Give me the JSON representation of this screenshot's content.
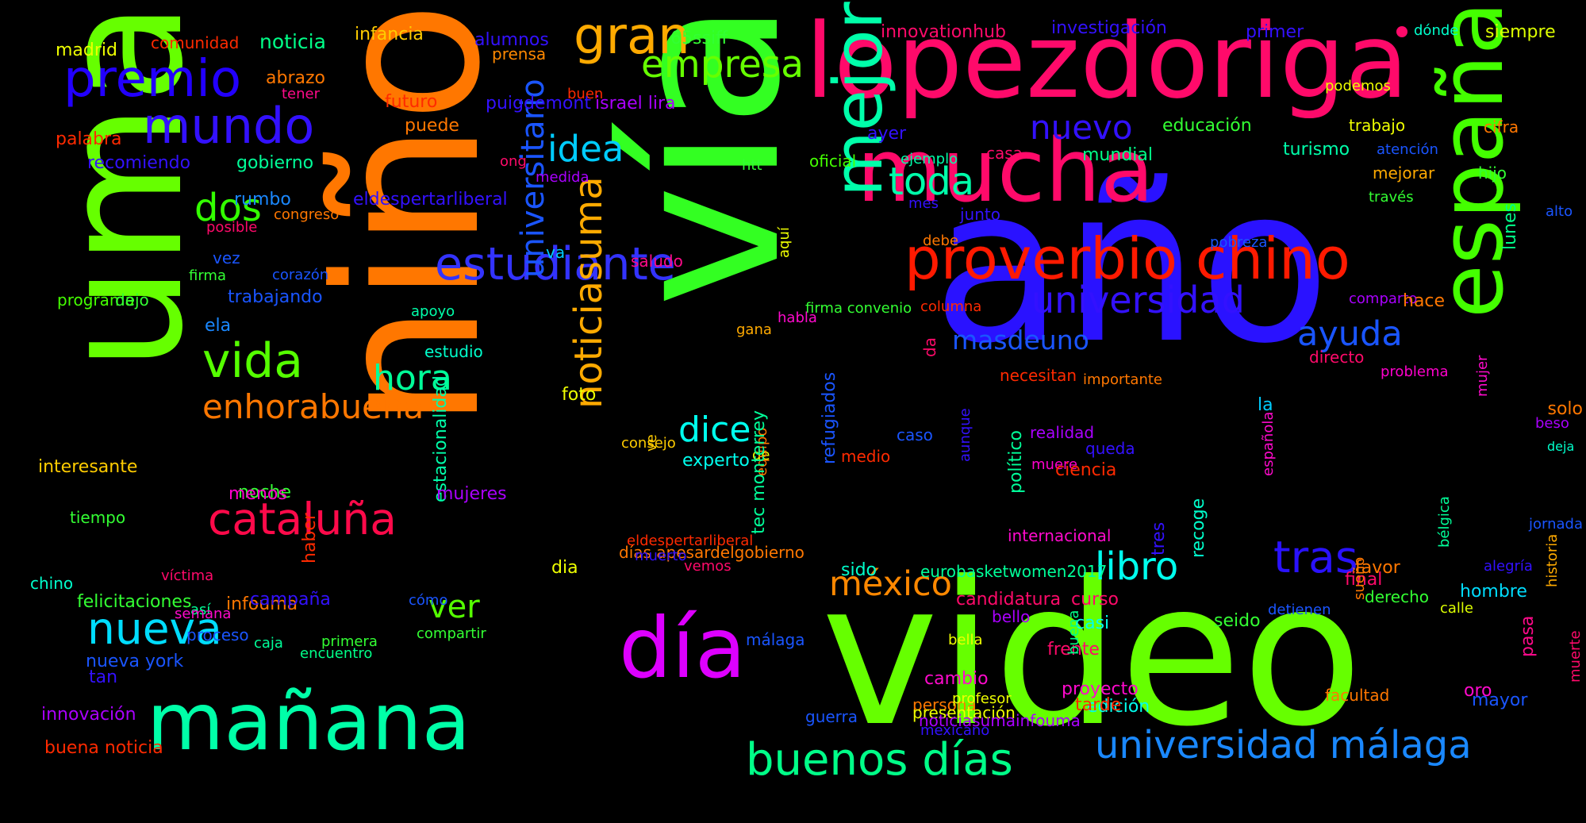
{
  "title": "",
  "words": [
    {
      "text": "video",
      "color": "#66ff00"
    },
    {
      "text": "vía",
      "color": "#33ff22"
    },
    {
      "text": "niño",
      "color": "#ff7700"
    },
    {
      "text": "año",
      "color": "#2a12ff"
    },
    {
      "text": "uma",
      "color": "#66ff00"
    },
    {
      "text": "lopezdoriga",
      "color": "#ff0a6a"
    },
    {
      "text": "mucha",
      "color": "#ff0a6a"
    },
    {
      "text": "españa",
      "color": "#44ff00"
    },
    {
      "text": "mañana",
      "color": "#00ffa8"
    },
    {
      "text": "mejor",
      "color": "#00ffaa"
    },
    {
      "text": "día",
      "color": "#dd00ff"
    },
    {
      "text": "proverbio chino",
      "color": "#ff1a00"
    },
    {
      "text": "buenos días",
      "color": "#00ff88"
    },
    {
      "text": "universidad málaga",
      "color": "#1a88ff"
    },
    {
      "text": "estudiante",
      "color": "#3333ff"
    },
    {
      "text": "premio",
      "color": "#2200ff"
    },
    {
      "text": "mundo",
      "color": "#3311ff"
    },
    {
      "text": "gran",
      "color": "#ffaa00"
    },
    {
      "text": "empresa",
      "color": "#66ff00"
    },
    {
      "text": "cataluña",
      "color": "#ff0a4a"
    },
    {
      "text": "vida",
      "color": "#55ff00"
    },
    {
      "text": "nueva",
      "color": "#00ddff"
    },
    {
      "text": "enhorabuena",
      "color": "#ff7700"
    },
    {
      "text": "universidad",
      "color": "#3311ff"
    },
    {
      "text": "noticiasuma",
      "color": "#ffaa00"
    },
    {
      "text": "universitario",
      "color": "#1a55ff"
    },
    {
      "text": "tras",
      "color": "#2a12ff"
    },
    {
      "text": "libro",
      "color": "#00ffee"
    },
    {
      "text": "toda",
      "color": "#00ffaa"
    },
    {
      "text": "idea",
      "color": "#00ccff"
    },
    {
      "text": "dos",
      "color": "#33ff00"
    },
    {
      "text": "ayuda",
      "color": "#1a55ff"
    },
    {
      "text": "dice",
      "color": "#00ffee"
    },
    {
      "text": "hora",
      "color": "#00ff99"
    },
    {
      "text": "ver",
      "color": "#55ff00"
    },
    {
      "text": "méxico",
      "color": "#ff8800"
    },
    {
      "text": "nuevo",
      "color": "#3311ff"
    },
    {
      "text": "masdeuno",
      "color": "#1a55ff"
    },
    {
      "text": "noticia",
      "color": "#00ff88"
    },
    {
      "text": "madrid",
      "color": "#eeff00"
    },
    {
      "text": "comunidad",
      "color": "#ff2a00"
    },
    {
      "text": "infancia",
      "color": "#ffcc00"
    },
    {
      "text": "alumnos",
      "color": "#3311ff"
    },
    {
      "text": "prensa",
      "color": "#ff8800"
    },
    {
      "text": "65ssiff",
      "color": "#33ff33"
    },
    {
      "text": "innovationhub",
      "color": "#ff0a6a"
    },
    {
      "text": "investigación",
      "color": "#3311ff"
    },
    {
      "text": "primer",
      "color": "#3311ff"
    },
    {
      "text": "dónde",
      "color": "#00ffcc"
    },
    {
      "text": "siempre",
      "color": "#ddff00"
    },
    {
      "text": "abrazo",
      "color": "#ff7700"
    },
    {
      "text": "tener",
      "color": "#ff0a8a"
    },
    {
      "text": "buen",
      "color": "#ff2a00"
    },
    {
      "text": "puigdemont",
      "color": "#3311ff"
    },
    {
      "text": "israel lira",
      "color": "#aa00ff"
    },
    {
      "text": "podemos",
      "color": "#eeff00"
    },
    {
      "text": "futuro",
      "color": "#ff2a00"
    },
    {
      "text": "puede",
      "color": "#ff7700"
    },
    {
      "text": "palabra",
      "color": "#ff2a00"
    },
    {
      "text": "recomiendo",
      "color": "#3311ff"
    },
    {
      "text": "gobierno",
      "color": "#00ff99"
    },
    {
      "text": "ayer",
      "color": "#3311ff"
    },
    {
      "text": "educación",
      "color": "#33ff33"
    },
    {
      "text": "trabajo",
      "color": "#eeff00"
    },
    {
      "text": "cifra",
      "color": "#ff7700"
    },
    {
      "text": "turismo",
      "color": "#00ffaa"
    },
    {
      "text": "atención",
      "color": "#1a55ff"
    },
    {
      "text": "ong",
      "color": "#ff0a6a"
    },
    {
      "text": "medida",
      "color": "#aa00ff"
    },
    {
      "text": "htt",
      "color": "#33ff33"
    },
    {
      "text": "oficial",
      "color": "#44ff00"
    },
    {
      "text": "ejemplo",
      "color": "#00ffaa"
    },
    {
      "text": "casa",
      "color": "#ff0a6a"
    },
    {
      "text": "mundial",
      "color": "#00ff88"
    },
    {
      "text": "mejorar",
      "color": "#ffaa00"
    },
    {
      "text": "hijo",
      "color": "#33ff33"
    },
    {
      "text": "rumbo",
      "color": "#1a88ff"
    },
    {
      "text": "eldespertarliberal",
      "color": "#3311ff"
    },
    {
      "text": "congreso",
      "color": "#ff7700"
    },
    {
      "text": "mes",
      "color": "#3311ff"
    },
    {
      "text": "junto",
      "color": "#3311ff"
    },
    {
      "text": "través",
      "color": "#33ff33"
    },
    {
      "text": "alto",
      "color": "#1a55ff"
    },
    {
      "text": "posible",
      "color": "#ff0a6a"
    },
    {
      "text": "debe",
      "color": "#ff7700"
    },
    {
      "text": "pobreza",
      "color": "#1a55ff"
    },
    {
      "text": "vez",
      "color": "#1a55ff"
    },
    {
      "text": "firma",
      "color": "#33ff33"
    },
    {
      "text": "corazón",
      "color": "#1a55ff"
    },
    {
      "text": "va",
      "color": "#00ccff"
    },
    {
      "text": "saludo",
      "color": "#ff0a8a"
    },
    {
      "text": "lunes",
      "color": "#00ff88"
    },
    {
      "text": "aquí",
      "color": "#eeff00"
    },
    {
      "text": "programa",
      "color": "#44ff00"
    },
    {
      "text": "dejo",
      "color": "#33ff33"
    },
    {
      "text": "trabajando",
      "color": "#1a55ff"
    },
    {
      "text": "apoyo",
      "color": "#00ffaa"
    },
    {
      "text": "firma convenio",
      "color": "#33ff33"
    },
    {
      "text": "columna",
      "color": "#ff2a00"
    },
    {
      "text": "comparto",
      "color": "#aa00ff"
    },
    {
      "text": "hace",
      "color": "#ff7700"
    },
    {
      "text": "ela",
      "color": "#1a88ff"
    },
    {
      "text": "habla",
      "color": "#ff0acc"
    },
    {
      "text": "gana",
      "color": "#ffaa00"
    },
    {
      "text": "da",
      "color": "#ff0a6a"
    },
    {
      "text": "estudio",
      "color": "#00ffcc"
    },
    {
      "text": "directo",
      "color": "#ff0a6a"
    },
    {
      "text": "necesitan",
      "color": "#ff2a00"
    },
    {
      "text": "problema",
      "color": "#ff00cc"
    },
    {
      "text": "mujer",
      "color": "#ff0acc"
    },
    {
      "text": "la",
      "color": "#00ccff"
    },
    {
      "text": "foto",
      "color": "#eeff00"
    },
    {
      "text": "importante",
      "color": "#ff7700"
    },
    {
      "text": "solo",
      "color": "#ff7700"
    },
    {
      "text": "de",
      "color": "#eeff00"
    },
    {
      "text": "realidad",
      "color": "#aa00ff"
    },
    {
      "text": "beso",
      "color": "#aa00ff"
    },
    {
      "text": "muere",
      "color": "#ff00cc"
    },
    {
      "text": "caso",
      "color": "#1a55ff"
    },
    {
      "text": "queda",
      "color": "#3311ff"
    },
    {
      "text": "deja",
      "color": "#00ffcc"
    },
    {
      "text": "consejo",
      "color": "#ffcc00"
    },
    {
      "text": "ve",
      "color": "#ffcc00"
    },
    {
      "text": "medio",
      "color": "#ff2a00"
    },
    {
      "text": "experto",
      "color": "#00ffee"
    },
    {
      "text": "aunque",
      "color": "#3311ff"
    },
    {
      "text": "ciencia",
      "color": "#ff2a00"
    },
    {
      "text": "refugiados",
      "color": "#1a55ff"
    },
    {
      "text": "noche",
      "color": "#33ff33"
    },
    {
      "text": "estacionalidad",
      "color": "#00ffaa"
    },
    {
      "text": "española",
      "color": "#ff0acc"
    },
    {
      "text": "menos",
      "color": "#ff00cc"
    },
    {
      "text": "equipo",
      "color": "#ff7700"
    },
    {
      "text": "mujeres",
      "color": "#aa00ff"
    },
    {
      "text": "interesante",
      "color": "#ffcc00"
    },
    {
      "text": "tec monterrey",
      "color": "#00ff99"
    },
    {
      "text": "días apesardelgobierno",
      "color": "#ff7700"
    },
    {
      "text": "político",
      "color": "#00ff99"
    },
    {
      "text": "internacional",
      "color": "#ff0acc"
    },
    {
      "text": "bélgica",
      "color": "#00ff99"
    },
    {
      "text": "tiempo",
      "color": "#33ff33"
    },
    {
      "text": "eldespertarliberal",
      "color": "#ff2a00"
    },
    {
      "text": "muerto",
      "color": "#3311ff"
    },
    {
      "text": "dia",
      "color": "#eeff00"
    },
    {
      "text": "vemos",
      "color": "#ff0a6a"
    },
    {
      "text": "jornada",
      "color": "#1a55ff"
    },
    {
      "text": "chino",
      "color": "#00ffcc"
    },
    {
      "text": "sido",
      "color": "#00ffcc"
    },
    {
      "text": "tres",
      "color": "#3311ff"
    },
    {
      "text": "recoge",
      "color": "#00ffcc"
    },
    {
      "text": "favor",
      "color": "#ff7700"
    },
    {
      "text": "alegría",
      "color": "#3311ff"
    },
    {
      "text": "eurobasketwomen2017",
      "color": "#00ff99"
    },
    {
      "text": "infouma",
      "color": "#ff7700"
    },
    {
      "text": "haber",
      "color": "#ff2a00"
    },
    {
      "text": "final",
      "color": "#ff0a6a"
    },
    {
      "text": "derecho",
      "color": "#33ff33"
    },
    {
      "text": "sueño",
      "color": "#ff7700"
    },
    {
      "text": "detienen",
      "color": "#1a55ff"
    },
    {
      "text": "hombre",
      "color": "#00ddff"
    },
    {
      "text": "historia",
      "color": "#ffaa00"
    },
    {
      "text": "candidatura",
      "color": "#ff0a6a"
    },
    {
      "text": "felicitaciones",
      "color": "#33ff33"
    },
    {
      "text": "víctima",
      "color": "#ff0a6a"
    },
    {
      "text": "campaña",
      "color": "#3311ff"
    },
    {
      "text": "calle",
      "color": "#ddff00"
    },
    {
      "text": "cómo",
      "color": "#1a55ff"
    },
    {
      "text": "curso",
      "color": "#ff0a6a"
    },
    {
      "text": "bello",
      "color": "#aa00ff"
    },
    {
      "text": "así",
      "color": "#00ff99"
    },
    {
      "text": "casi",
      "color": "#00ffee"
    },
    {
      "text": "semana",
      "color": "#ff0acc"
    },
    {
      "text": "proceso",
      "color": "#1a55ff"
    },
    {
      "text": "primera",
      "color": "#33ff33"
    },
    {
      "text": "encuentro",
      "color": "#00ff88"
    },
    {
      "text": "compartir",
      "color": "#33ff33"
    },
    {
      "text": "caja",
      "color": "#00ff99"
    },
    {
      "text": "málaga",
      "color": "#1a55ff"
    },
    {
      "text": "bella",
      "color": "#eeff00"
    },
    {
      "text": "seido",
      "color": "#33ff33"
    },
    {
      "text": "nueva york",
      "color": "#1a55ff"
    },
    {
      "text": "frente",
      "color": "#ff0a6a"
    },
    {
      "text": "buena",
      "color": "#00ff88"
    },
    {
      "text": "cambio",
      "color": "#ff0acc"
    },
    {
      "text": "pasa",
      "color": "#ff0a8a"
    },
    {
      "text": "tan",
      "color": "#3311ff"
    },
    {
      "text": "proyecto",
      "color": "#ff0acc"
    },
    {
      "text": "edición",
      "color": "#00ffee"
    },
    {
      "text": "persona",
      "color": "#ff7700"
    },
    {
      "text": "mayor",
      "color": "#1a55ff"
    },
    {
      "text": "muerte",
      "color": "#ff0a6a"
    },
    {
      "text": "tarde",
      "color": "#ff2a00"
    },
    {
      "text": "guerra",
      "color": "#1a55ff"
    },
    {
      "text": "presentación",
      "color": "#eeff00"
    },
    {
      "text": "profesor",
      "color": "#eeff00"
    },
    {
      "text": "facultad",
      "color": "#ff7700"
    },
    {
      "text": "oro",
      "color": "#ff0acc"
    },
    {
      "text": "noticiasumainfouma",
      "color": "#aa00ff"
    },
    {
      "text": "innovación",
      "color": "#aa00ff"
    },
    {
      "text": "buena noticia",
      "color": "#ff2a00"
    },
    {
      "text": "mexicano",
      "color": "#3311ff"
    }
  ]
}
